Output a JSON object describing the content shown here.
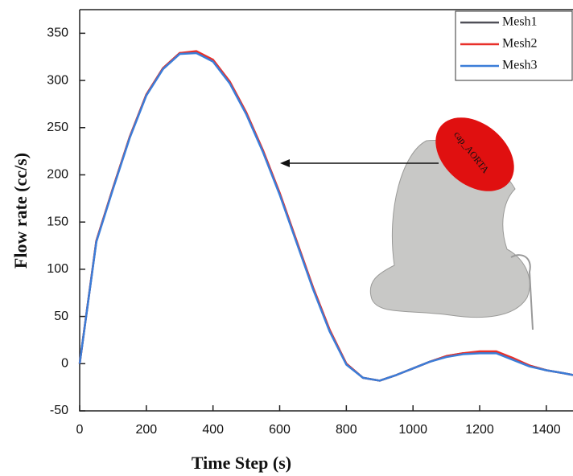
{
  "chart_data": {
    "type": "line",
    "xlabel": "Time Step (s)",
    "ylabel": "Flow rate (cc/s)",
    "annotation": "cap_AORTA",
    "x": [
      0,
      50,
      100,
      150,
      200,
      250,
      300,
      350,
      400,
      450,
      500,
      550,
      600,
      650,
      700,
      750,
      800,
      850,
      900,
      950,
      1000,
      1050,
      1100,
      1150,
      1200,
      1250,
      1300,
      1350,
      1400,
      1450,
      1480
    ],
    "series": [
      {
        "name": "Mesh1",
        "color": "#505058",
        "values": [
          0,
          130,
          186,
          240,
          285,
          313,
          329,
          330,
          321,
          298,
          265,
          225,
          180,
          130,
          80,
          35,
          0,
          -15,
          -18,
          -12,
          -5,
          2,
          8,
          11,
          12,
          12,
          5,
          -2,
          -7,
          -10,
          -12
        ]
      },
      {
        "name": "Mesh2",
        "color": "#e8302a",
        "values": [
          0,
          130,
          186,
          240,
          285,
          313,
          329,
          331,
          322,
          299,
          266,
          226,
          181,
          131,
          81,
          36,
          0,
          -15,
          -18,
          -12,
          -5,
          2,
          8,
          11,
          13,
          13,
          6,
          -2,
          -7,
          -10,
          -12
        ]
      },
      {
        "name": "Mesh3",
        "color": "#3b7dd8",
        "values": [
          0,
          129,
          185,
          239,
          284,
          312,
          328,
          329,
          320,
          297,
          264,
          224,
          179,
          129,
          79,
          34,
          -1,
          -15,
          -18,
          -12,
          -5,
          2,
          7,
          10,
          11,
          11,
          4,
          -3,
          -7,
          -10,
          -12
        ]
      }
    ],
    "xlim": [
      0,
      1480
    ],
    "ylim": [
      -50,
      375
    ],
    "xticks": [
      0,
      200,
      400,
      600,
      800,
      1000,
      1200,
      1400
    ],
    "yticks": [
      -50,
      0,
      50,
      100,
      150,
      200,
      250,
      300,
      350
    ]
  }
}
